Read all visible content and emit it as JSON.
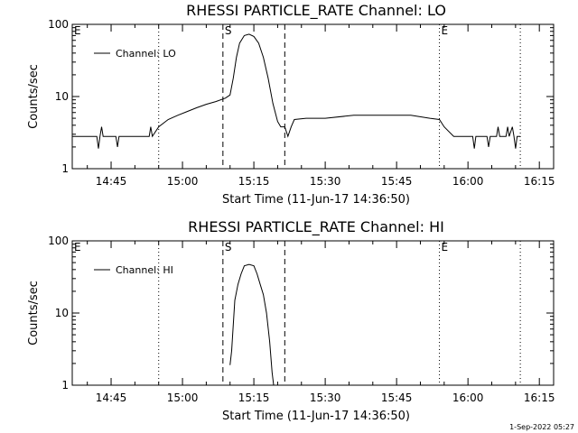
{
  "footer": {
    "date_stamp": "1-Sep-2022 05:27"
  },
  "chart_data": [
    {
      "type": "line",
      "title": "RHESSI PARTICLE_RATE Channel: LO",
      "xlabel": "Start Time (11-Jun-17 14:36:50)",
      "ylabel": "Counts/sec",
      "y_scale": "log",
      "ylim": [
        1,
        100
      ],
      "xlim": [
        "14:36:50",
        "16:18:00"
      ],
      "x_ticks": [
        "14:45",
        "15:00",
        "15:15",
        "15:30",
        "15:45",
        "16:00",
        "16:15"
      ],
      "y_ticks": [
        "1",
        "10",
        "100"
      ],
      "legend": {
        "position": "top-left",
        "entries": [
          "Channel: LO"
        ]
      },
      "markers": [
        {
          "label": "E",
          "time": "14:36:50",
          "style": "dotted"
        },
        {
          "time": "14:55:00",
          "style": "dotted"
        },
        {
          "label": "S",
          "time": "15:08:30",
          "style": "dashed"
        },
        {
          "time": "15:21:30",
          "style": "dashed"
        },
        {
          "label": "E",
          "time": "15:54:00",
          "style": "dotted"
        },
        {
          "time": "16:11:00",
          "style": "dotted"
        }
      ],
      "series": [
        {
          "name": "Channel: LO",
          "points": [
            [
              "14:36:50",
              2.8
            ],
            [
              "14:42:00",
              2.8
            ],
            [
              "14:42:20",
              1.9
            ],
            [
              "14:42:40",
              2.8
            ],
            [
              "14:43:00",
              3.8
            ],
            [
              "14:43:20",
              2.8
            ],
            [
              "14:46:00",
              2.8
            ],
            [
              "14:46:20",
              2.0
            ],
            [
              "14:46:40",
              2.8
            ],
            [
              "14:53:00",
              2.8
            ],
            [
              "14:53:20",
              3.8
            ],
            [
              "14:53:40",
              2.8
            ],
            [
              "14:55:00",
              3.8
            ],
            [
              "14:57:00",
              4.8
            ],
            [
              "14:59:00",
              5.5
            ],
            [
              "15:01:00",
              6.2
            ],
            [
              "15:03:00",
              7.0
            ],
            [
              "15:05:00",
              7.8
            ],
            [
              "15:07:00",
              8.5
            ],
            [
              "15:09:00",
              9.5
            ],
            [
              "15:10:00",
              10.5
            ],
            [
              "15:10:40",
              18.0
            ],
            [
              "15:11:20",
              35.0
            ],
            [
              "15:12:00",
              55.0
            ],
            [
              "15:13:00",
              70.0
            ],
            [
              "15:14:00",
              73.0
            ],
            [
              "15:15:00",
              68.0
            ],
            [
              "15:16:00",
              55.0
            ],
            [
              "15:17:00",
              35.0
            ],
            [
              "15:18:00",
              18.0
            ],
            [
              "15:19:00",
              8.0
            ],
            [
              "15:20:00",
              4.5
            ],
            [
              "15:20:40",
              3.8
            ],
            [
              "15:21:30",
              3.8
            ],
            [
              "15:22:10",
              2.8
            ],
            [
              "15:22:50",
              3.8
            ],
            [
              "15:23:30",
              4.8
            ],
            [
              "15:26:00",
              5.0
            ],
            [
              "15:30:00",
              5.0
            ],
            [
              "15:36:00",
              5.5
            ],
            [
              "15:42:00",
              5.5
            ],
            [
              "15:48:00",
              5.5
            ],
            [
              "15:52:00",
              5.0
            ],
            [
              "15:54:00",
              4.8
            ],
            [
              "15:55:00",
              3.8
            ],
            [
              "15:57:00",
              2.8
            ],
            [
              "16:01:00",
              2.8
            ],
            [
              "16:01:20",
              1.9
            ],
            [
              "16:01:40",
              2.8
            ],
            [
              "16:04:00",
              2.8
            ],
            [
              "16:04:20",
              2.0
            ],
            [
              "16:04:40",
              2.8
            ],
            [
              "16:06:00",
              2.8
            ],
            [
              "16:06:20",
              3.8
            ],
            [
              "16:06:40",
              2.8
            ],
            [
              "16:08:00",
              2.8
            ],
            [
              "16:08:20",
              3.8
            ],
            [
              "16:08:40",
              2.8
            ],
            [
              "16:09:20",
              3.8
            ],
            [
              "16:09:40",
              2.8
            ],
            [
              "16:10:00",
              1.9
            ],
            [
              "16:10:20",
              2.8
            ],
            [
              "16:11:00",
              2.8
            ]
          ]
        }
      ]
    },
    {
      "type": "line",
      "title": "RHESSI PARTICLE_RATE Channel: HI",
      "xlabel": "Start Time (11-Jun-17 14:36:50)",
      "ylabel": "Counts/sec",
      "y_scale": "log",
      "ylim": [
        1,
        100
      ],
      "xlim": [
        "14:36:50",
        "16:18:00"
      ],
      "x_ticks": [
        "14:45",
        "15:00",
        "15:15",
        "15:30",
        "15:45",
        "16:00",
        "16:15"
      ],
      "y_ticks": [
        "1",
        "10",
        "100"
      ],
      "legend": {
        "position": "top-left",
        "entries": [
          "Channel: HI"
        ]
      },
      "markers": [
        {
          "label": "E",
          "time": "14:36:50",
          "style": "dotted"
        },
        {
          "time": "14:55:00",
          "style": "dotted"
        },
        {
          "label": "S",
          "time": "15:08:30",
          "style": "dashed"
        },
        {
          "time": "15:21:30",
          "style": "dashed"
        },
        {
          "label": "E",
          "time": "15:54:00",
          "style": "dotted"
        },
        {
          "time": "16:11:00",
          "style": "dotted"
        }
      ],
      "series": [
        {
          "name": "Channel: HI",
          "points": [
            [
              "15:10:00",
              1.9
            ],
            [
              "15:10:20",
              3.0
            ],
            [
              "15:11:00",
              15.0
            ],
            [
              "15:11:40",
              25.0
            ],
            [
              "15:12:20",
              35.0
            ],
            [
              "15:13:00",
              45.0
            ],
            [
              "15:14:00",
              47.0
            ],
            [
              "15:15:00",
              45.0
            ],
            [
              "15:15:40",
              35.0
            ],
            [
              "15:16:20",
              25.0
            ],
            [
              "15:17:00",
              18.0
            ],
            [
              "15:17:40",
              10.0
            ],
            [
              "15:18:20",
              4.0
            ],
            [
              "15:18:50",
              1.5
            ],
            [
              "15:19:10",
              1.0
            ]
          ]
        }
      ]
    }
  ]
}
